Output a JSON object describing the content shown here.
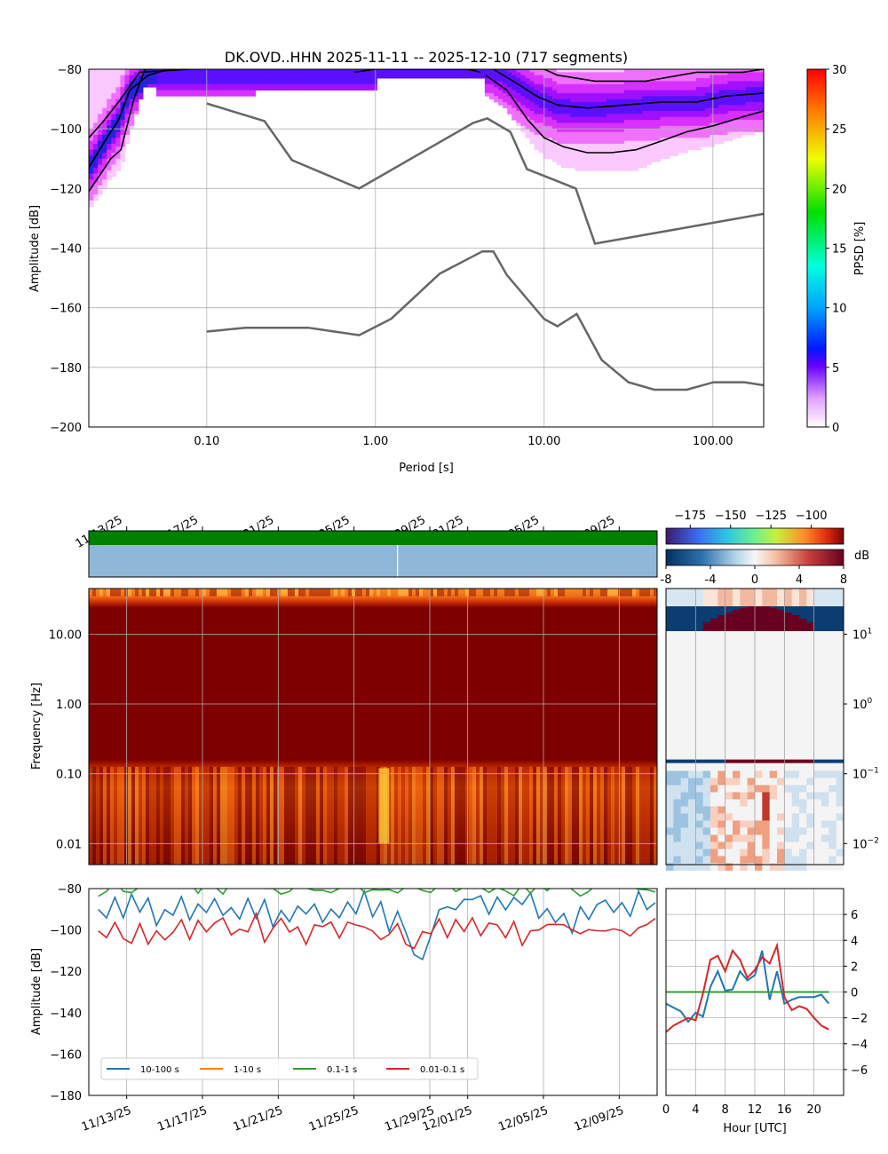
{
  "colors": {
    "nlnm_nhnm": "#666666",
    "percentile": "#000000",
    "s10_100": "#1f77b4",
    "s1_10": "#ff7f0e",
    "s01_1": "#2ca02c",
    "s001_01": "#d62728",
    "coverage_green": "#008000",
    "coverage_blue": "#8fb8d8"
  },
  "chart_data": [
    {
      "type": "heatmap",
      "name": "ppsd",
      "title": "DK.OVD..HHN   2025-11-11 -- 2025-12-10  (717 segments)",
      "xlabel": "Period [s]",
      "ylabel": "Amplitude [dB]",
      "xscale": "log",
      "xlim": [
        0.02,
        200
      ],
      "ylim": [
        -200,
        -80
      ],
      "xticks": [
        0.1,
        1,
        10,
        100
      ],
      "xtick_labels": [
        "0.10",
        "1.00",
        "10.00",
        "100.00"
      ],
      "yticks": [
        -200,
        -180,
        -160,
        -140,
        -120,
        -100,
        -80
      ],
      "ytick_labels": [
        "−200",
        "−180",
        "−160",
        "−140",
        "−120",
        "−100",
        "−80"
      ],
      "colorbar": {
        "label": "PPSD [%]",
        "range": [
          0,
          30
        ],
        "ticks": [
          "0",
          "5",
          "10",
          "15",
          "20",
          "25",
          "30"
        ]
      },
      "nhnm": [
        [
          0.1,
          -91.5
        ],
        [
          0.22,
          -97.4
        ],
        [
          0.32,
          -110.5
        ],
        [
          0.8,
          -120
        ],
        [
          3.8,
          -98
        ],
        [
          4.6,
          -96.5
        ],
        [
          6.3,
          -101
        ],
        [
          7.9,
          -113.5
        ],
        [
          15.4,
          -120
        ],
        [
          20,
          -138.5
        ],
        [
          200,
          -128.5
        ]
      ],
      "nlnm": [
        [
          0.1,
          -168
        ],
        [
          0.17,
          -166.7
        ],
        [
          0.4,
          -166.7
        ],
        [
          0.8,
          -169.2
        ],
        [
          1.24,
          -163.7
        ],
        [
          2.4,
          -148.6
        ],
        [
          4.3,
          -141.1
        ],
        [
          5,
          -141.1
        ],
        [
          6,
          -149
        ],
        [
          10,
          -163.8
        ],
        [
          12,
          -166.2
        ],
        [
          15.6,
          -162.1
        ],
        [
          21.9,
          -177.5
        ],
        [
          31.6,
          -185
        ],
        [
          45,
          -187.5
        ],
        [
          70,
          -187.5
        ],
        [
          101,
          -185
        ],
        [
          154,
          -185
        ],
        [
          200,
          -186
        ]
      ],
      "percentile_low": [
        [
          0.02,
          -121
        ],
        [
          0.027,
          -110
        ],
        [
          0.031,
          -107
        ],
        [
          0.037,
          -90
        ],
        [
          0.043,
          -80
        ],
        [
          0.048,
          -80
        ]
      ],
      "percentile_mid": [
        [
          0.02,
          -113
        ],
        [
          0.025,
          -104
        ],
        [
          0.03,
          -97
        ],
        [
          0.035,
          -87
        ],
        [
          0.045,
          -82
        ],
        [
          0.06,
          -80
        ],
        [
          0.2,
          -79
        ],
        [
          0.7,
          -79
        ],
        [
          1,
          -80
        ],
        [
          2,
          -80
        ],
        [
          4,
          -80
        ]
      ],
      "percentile_high": [
        [
          0.02,
          -103
        ],
        [
          0.024,
          -98
        ],
        [
          0.03,
          -91
        ],
        [
          0.04,
          -81
        ],
        [
          0.08,
          -80
        ],
        [
          0.5,
          -79
        ],
        [
          1.3,
          -80
        ],
        [
          3.5,
          -80
        ],
        [
          4.2,
          -81
        ]
      ],
      "percentile_curve_a": [
        [
          4.5,
          -82
        ],
        [
          6,
          -87
        ],
        [
          8,
          -97
        ],
        [
          10,
          -103
        ],
        [
          13,
          -106
        ],
        [
          18,
          -108
        ],
        [
          25,
          -108
        ],
        [
          35,
          -107
        ],
        [
          50,
          -104
        ],
        [
          70,
          -101
        ],
        [
          100,
          -99
        ],
        [
          150,
          -96
        ],
        [
          200,
          -94
        ]
      ],
      "percentile_curve_b": [
        [
          5,
          -80
        ],
        [
          7,
          -85
        ],
        [
          9,
          -89
        ],
        [
          12,
          -92
        ],
        [
          18,
          -93
        ],
        [
          30,
          -92
        ],
        [
          50,
          -91
        ],
        [
          80,
          -91
        ],
        [
          120,
          -89
        ],
        [
          200,
          -88
        ]
      ],
      "percentile_curve_c": [
        [
          6,
          -80
        ],
        [
          8,
          -80
        ],
        [
          10,
          -80
        ],
        [
          12,
          -82
        ],
        [
          20,
          -84
        ],
        [
          40,
          -84
        ],
        [
          80,
          -81
        ],
        [
          150,
          -81
        ],
        [
          200,
          -80
        ]
      ],
      "top_band_right": [
        [
          0.75,
          -81
        ],
        [
          1.0,
          -80
        ]
      ]
    },
    {
      "type": "heatmap",
      "name": "spectrogram",
      "ylabel": "Frequency [Hz]",
      "xtick_labels": [
        "11/13/25",
        "11/17/25",
        "11/21/25",
        "11/25/25",
        "11/29/25",
        "12/01/25",
        "12/05/25",
        "12/09/25"
      ],
      "xtick_days": [
        2,
        6,
        10,
        14,
        18,
        20,
        24,
        28
      ],
      "yscale": "log",
      "ylim": [
        0.005,
        45
      ],
      "yticks": [
        0.01,
        0.1,
        1,
        10
      ],
      "ytick_labels": [
        "0.01",
        "0.10",
        "1.00",
        "10.00"
      ],
      "colorbar_abs": {
        "range": [
          -190,
          -80
        ],
        "ticks": [
          "−175",
          "−150",
          "−125",
          "−100"
        ]
      },
      "colorbar_rel": {
        "label": "dB",
        "range": [
          -8,
          8
        ],
        "ticks": [
          "-8",
          "-4",
          "0",
          "4",
          "8"
        ]
      },
      "gap_day": 16.3
    },
    {
      "type": "line",
      "name": "band_timeseries",
      "ylabel": "Amplitude [dB]",
      "ylim": [
        -180,
        -80
      ],
      "yticks": [
        -180,
        -160,
        -140,
        -120,
        -100,
        -80
      ],
      "ytick_labels": [
        "−180",
        "−160",
        "−140",
        "−120",
        "−100",
        "−80"
      ],
      "xlim_days": [
        0,
        30
      ],
      "legend": [
        "10-100 s",
        "1-10 s",
        "0.1-1 s",
        "0.01-0.1 s"
      ],
      "legend_loc": "lower left",
      "series": [
        {
          "name": "10-100 s",
          "values": [
            -88,
            -92,
            -83,
            -95,
            -84,
            -93,
            -86,
            -99,
            -88,
            -95,
            -84,
            -97,
            -87,
            -92,
            -83,
            -95,
            -88,
            -96,
            -85,
            -92,
            -87,
            -101,
            -90,
            -98,
            -88,
            -93,
            -86,
            -96,
            -88,
            -94,
            -86,
            -92,
            -84,
            -95,
            -89,
            -98,
            -93,
            -104,
            -110,
            -112,
            -100,
            -92,
            -86,
            -90,
            -84,
            -88,
            -85,
            -90,
            -83,
            -89,
            -85,
            -88,
            -82,
            -93,
            -87,
            -98,
            -92,
            -100,
            -89,
            -96,
            -88,
            -84,
            -90,
            -86,
            -92,
            -82,
            -88,
            -84
          ]
        },
        {
          "name": "0.1-1 s",
          "values": [
            -82,
            -80,
            -79,
            -81,
            -80,
            -79,
            -80,
            -78,
            -80,
            -79,
            -81,
            -79,
            -80,
            -78,
            -80,
            -80,
            -79,
            -81,
            -79,
            -80,
            -79,
            -80,
            -81,
            -79,
            -80,
            -78,
            -80,
            -79,
            -81,
            -80,
            -79,
            -80,
            -79,
            -80,
            -81,
            -79,
            -80,
            -79,
            -80,
            -81,
            -80,
            -79,
            -80,
            -79,
            -80,
            -81,
            -80,
            -79,
            -80,
            -79,
            -82,
            -79,
            -80,
            -79,
            -81,
            -80,
            -79,
            -80,
            -81,
            -79,
            -80,
            -79,
            -80,
            -79,
            -81,
            -80,
            -79,
            -80
          ]
        },
        {
          "name": "0.01-0.1 s",
          "values": [
            -100,
            -106,
            -97,
            -102,
            -108,
            -96,
            -104,
            -99,
            -107,
            -101,
            -97,
            -105,
            -98,
            -103,
            -99,
            -96,
            -104,
            -98,
            -101,
            -95,
            -103,
            -99,
            -97,
            -102,
            -96,
            -104,
            -98,
            -100,
            -97,
            -102,
            -99,
            -96,
            -101,
            -98,
            -103,
            -100,
            -97,
            -104,
            -108,
            -102,
            -99,
            -97,
            -101,
            -96,
            -99,
            -97,
            -102,
            -98,
            -100,
            -104,
            -98,
            -106,
            -101,
            -103,
            -97,
            -100,
            -98,
            -102,
            -99,
            -97,
            -103,
            -99,
            -101,
            -98,
            -100,
            -97,
            -99,
            -96
          ]
        }
      ]
    },
    {
      "type": "line",
      "name": "diurnal",
      "xlabel": "Hour [UTC]",
      "x": [
        0,
        1,
        2,
        3,
        4,
        5,
        6,
        7,
        8,
        9,
        10,
        11,
        12,
        13,
        14,
        15,
        16,
        17,
        18,
        19,
        20,
        21,
        22
      ],
      "xticks": [
        "0",
        "4",
        "8",
        "12",
        "16",
        "20"
      ],
      "ylim": [
        -8,
        8
      ],
      "yticks": [
        "6",
        "4",
        "2",
        "0",
        "−2",
        "−4",
        "−6"
      ],
      "series": [
        {
          "name": "10-100 s",
          "values": [
            -0.9,
            -1.2,
            -1.5,
            -2.3,
            -1.6,
            -1.9,
            0.4,
            1.6,
            0.1,
            0.2,
            1.6,
            0.9,
            1.3,
            3.2,
            -0.6,
            1.6,
            -0.9,
            -0.6,
            -0.4,
            -0.4,
            -0.4,
            -0.2,
            -0.9
          ]
        },
        {
          "name": "0.1-1 s",
          "values": [
            0,
            0,
            0,
            0,
            0,
            0,
            0,
            0,
            0,
            0,
            0,
            0,
            0,
            0,
            0,
            0,
            0,
            0,
            0,
            0,
            0,
            0,
            0
          ]
        },
        {
          "name": "0.01-0.1 s",
          "values": [
            -3.1,
            -2.6,
            -2.3,
            -2.0,
            -2.2,
            -0.1,
            2.5,
            2.8,
            1.6,
            3.2,
            2.5,
            1.1,
            1.7,
            2.7,
            2.2,
            3.6,
            -0.4,
            -1.4,
            -1.1,
            -1.3,
            -2.0,
            -2.6,
            -2.9
          ]
        }
      ]
    }
  ]
}
